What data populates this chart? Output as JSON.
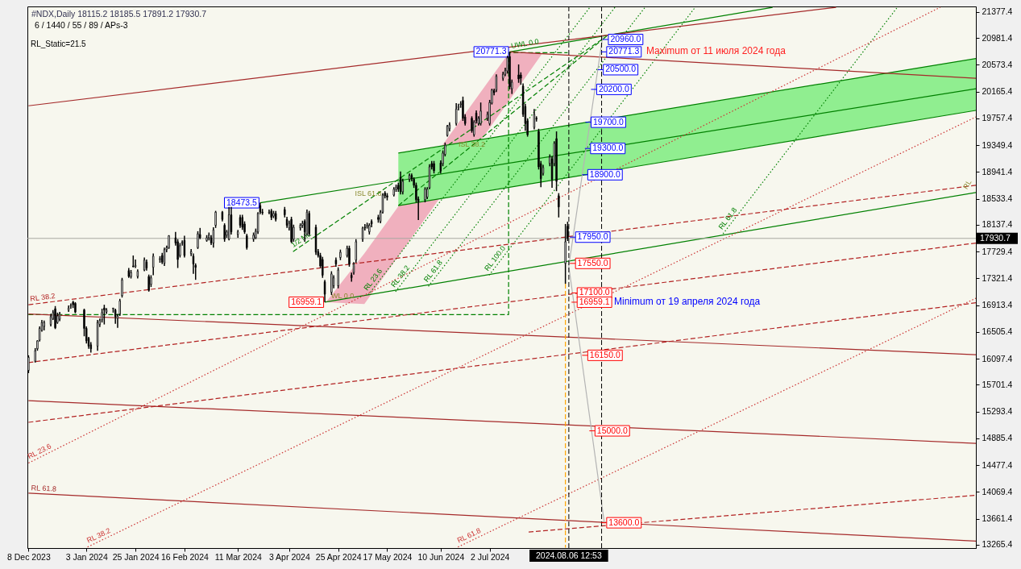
{
  "chart_data": {
    "type": "candlestick",
    "title": "#NDX,Daily  18115.2 18185.5 17891.2 17930.7",
    "subtitle": "6 / 1440 / 55 / 89 / APs-3",
    "xlim": [
      "2023-12-07T12:00",
      "2025-02-05T06:00"
    ],
    "ylim": [
      13215,
      21463
    ],
    "xticks": [
      {
        "value": "2023-12-08",
        "label": "8 Dec 2023"
      },
      {
        "value": "2024-01-03",
        "label": "3 Jan 2024"
      },
      {
        "value": "2024-01-25",
        "label": "25 Jan 2024"
      },
      {
        "value": "2024-02-16",
        "label": "16 Feb 2024"
      },
      {
        "value": "2024-03-11",
        "label": "11 Mar 2024"
      },
      {
        "value": "2024-04-03",
        "label": "3 Apr 2024"
      },
      {
        "value": "2024-04-25",
        "label": "25 Apr 2024"
      },
      {
        "value": "2024-05-17",
        "label": "17 May 2024"
      },
      {
        "value": "2024-06-10",
        "label": "10 Jun 2024"
      },
      {
        "value": "2024-07-02",
        "label": "2 Jul 2024"
      }
    ],
    "yticks": [
      21377.4,
      20981.4,
      20573.4,
      20165.4,
      19757.4,
      19349.4,
      18941.4,
      18533.4,
      18137.4,
      17729.4,
      17321.4,
      16913.4,
      16505.4,
      16097.4,
      15701.4,
      15293.4,
      14885.4,
      14477.4,
      14069.4,
      13661.4,
      13265.4
    ],
    "grid": false,
    "x": [
      "2023-12-08",
      "2023-12-11",
      "2023-12-12",
      "2023-12-13",
      "2023-12-14",
      "2023-12-15",
      "2023-12-18",
      "2023-12-19",
      "2023-12-20",
      "2023-12-21",
      "2023-12-22",
      "2023-12-26",
      "2023-12-27",
      "2023-12-28",
      "2023-12-29",
      "2024-01-02",
      "2024-01-03",
      "2024-01-04",
      "2024-01-05",
      "2024-01-08",
      "2024-01-09",
      "2024-01-10",
      "2024-01-11",
      "2024-01-12",
      "2024-01-15",
      "2024-01-16",
      "2024-01-17",
      "2024-01-18",
      "2024-01-19",
      "2024-01-22",
      "2024-01-23",
      "2024-01-24",
      "2024-01-25",
      "2024-01-26",
      "2024-01-29",
      "2024-01-30",
      "2024-01-31",
      "2024-02-01",
      "2024-02-02",
      "2024-02-05",
      "2024-02-06",
      "2024-02-07",
      "2024-02-08",
      "2024-02-09",
      "2024-02-12",
      "2024-02-13",
      "2024-02-14",
      "2024-02-15",
      "2024-02-16",
      "2024-02-19",
      "2024-02-20",
      "2024-02-21",
      "2024-02-22",
      "2024-02-23",
      "2024-02-26",
      "2024-02-27",
      "2024-02-28",
      "2024-02-29",
      "2024-03-01",
      "2024-03-04",
      "2024-03-05",
      "2024-03-06",
      "2024-03-07",
      "2024-03-08",
      "2024-03-11",
      "2024-03-12",
      "2024-03-13",
      "2024-03-14",
      "2024-03-15",
      "2024-03-18",
      "2024-03-19",
      "2024-03-20",
      "2024-03-21",
      "2024-03-22",
      "2024-03-25",
      "2024-03-26",
      "2024-03-27",
      "2024-03-28",
      "2024-04-01",
      "2024-04-02",
      "2024-04-03",
      "2024-04-04",
      "2024-04-05",
      "2024-04-08",
      "2024-04-09",
      "2024-04-10",
      "2024-04-11",
      "2024-04-12",
      "2024-04-15",
      "2024-04-16",
      "2024-04-17",
      "2024-04-18",
      "2024-04-19",
      "2024-04-22",
      "2024-04-23",
      "2024-04-24",
      "2024-04-25",
      "2024-04-26",
      "2024-04-29",
      "2024-04-30",
      "2024-05-01",
      "2024-05-02",
      "2024-05-03",
      "2024-05-06",
      "2024-05-07",
      "2024-05-08",
      "2024-05-09",
      "2024-05-10",
      "2024-05-13",
      "2024-05-14",
      "2024-05-15",
      "2024-05-16",
      "2024-05-17",
      "2024-05-20",
      "2024-05-21",
      "2024-05-22",
      "2024-05-23",
      "2024-05-24",
      "2024-05-27",
      "2024-05-28",
      "2024-05-29",
      "2024-05-30",
      "2024-05-31",
      "2024-06-03",
      "2024-06-04",
      "2024-06-05",
      "2024-06-06",
      "2024-06-07",
      "2024-06-10",
      "2024-06-11",
      "2024-06-12",
      "2024-06-13",
      "2024-06-14",
      "2024-06-17",
      "2024-06-18",
      "2024-06-19",
      "2024-06-20",
      "2024-06-21",
      "2024-06-24",
      "2024-06-25",
      "2024-06-26",
      "2024-06-27",
      "2024-06-28",
      "2024-07-01",
      "2024-07-02",
      "2024-07-03",
      "2024-07-04",
      "2024-07-05",
      "2024-07-08",
      "2024-07-09",
      "2024-07-10",
      "2024-07-11",
      "2024-07-12",
      "2024-07-15",
      "2024-07-16",
      "2024-07-17",
      "2024-07-18",
      "2024-07-19",
      "2024-07-22",
      "2024-07-23",
      "2024-07-24",
      "2024-07-25",
      "2024-07-26",
      "2024-07-29",
      "2024-07-30",
      "2024-07-31",
      "2024-08-01",
      "2024-08-02",
      "2024-08-05",
      "2024-08-06"
    ],
    "ohlc": [
      [
        15920,
        16150,
        15880,
        16120
      ],
      [
        16060,
        16260,
        16040,
        16220
      ],
      [
        16250,
        16380,
        16220,
        16370
      ],
      [
        16380,
        16590,
        16360,
        16560
      ],
      [
        16530,
        16690,
        16510,
        16650
      ],
      [
        16590,
        16680,
        16530,
        16650
      ],
      [
        16620,
        16780,
        16590,
        16740
      ],
      [
        16710,
        16840,
        16690,
        16800
      ],
      [
        16860,
        16900,
        16550,
        16570
      ],
      [
        16650,
        16800,
        16630,
        16750
      ],
      [
        16700,
        16810,
        16670,
        16780
      ],
      [
        16840,
        16910,
        16810,
        16870
      ],
      [
        16900,
        16940,
        16860,
        16910
      ],
      [
        16960,
        16980,
        16870,
        16920
      ],
      [
        16940,
        16960,
        16790,
        16810
      ],
      [
        16840,
        16860,
        16440,
        16560
      ],
      [
        16560,
        16590,
        16330,
        16370
      ],
      [
        16410,
        16430,
        16250,
        16290
      ],
      [
        16310,
        16350,
        16190,
        16250
      ],
      [
        16290,
        16690,
        16220,
        16650
      ],
      [
        16620,
        16710,
        16580,
        16680
      ],
      [
        16690,
        16860,
        16650,
        16800
      ],
      [
        16870,
        16920,
        16620,
        16840
      ],
      [
        16810,
        16870,
        16780,
        16840
      ],
      [
        16860,
        16870,
        16800,
        16870
      ],
      [
        16840,
        16860,
        16630,
        16740
      ],
      [
        16710,
        16780,
        16570,
        16750
      ],
      [
        16780,
        17010,
        16750,
        16980
      ],
      [
        17060,
        17330,
        17030,
        17300
      ],
      [
        17440,
        17480,
        17330,
        17350
      ],
      [
        17350,
        17450,
        17320,
        17410
      ],
      [
        17510,
        17670,
        17490,
        17500
      ],
      [
        17500,
        17610,
        17480,
        17520
      ],
      [
        17350,
        17460,
        17320,
        17430
      ],
      [
        17450,
        17640,
        17430,
        17600
      ],
      [
        17570,
        17610,
        17440,
        17480
      ],
      [
        17350,
        17380,
        17120,
        17140
      ],
      [
        17230,
        17370,
        17190,
        17330
      ],
      [
        17490,
        17700,
        17370,
        17660
      ],
      [
        17610,
        17660,
        17560,
        17620
      ],
      [
        17670,
        17710,
        17540,
        17570
      ],
      [
        17550,
        17790,
        17510,
        17760
      ],
      [
        17760,
        17820,
        17720,
        17790
      ],
      [
        17790,
        17980,
        17770,
        17970
      ],
      [
        17940,
        18030,
        17820,
        17860
      ],
      [
        17880,
        17920,
        17480,
        17610
      ],
      [
        17670,
        17860,
        17640,
        17820
      ],
      [
        17860,
        17900,
        17820,
        17870
      ],
      [
        17900,
        17970,
        17640,
        17670
      ],
      [
        17700,
        17770,
        17660,
        17730
      ],
      [
        17660,
        17700,
        17390,
        17540
      ],
      [
        17520,
        17550,
        17300,
        17490
      ],
      [
        17790,
        18040,
        17770,
        18000
      ],
      [
        17990,
        18090,
        17920,
        17940
      ],
      [
        17900,
        17980,
        17880,
        17940
      ],
      [
        17940,
        18020,
        17900,
        17980
      ],
      [
        17940,
        17980,
        17830,
        17860
      ],
      [
        17860,
        18100,
        17790,
        18060
      ],
      [
        18130,
        18350,
        18090,
        18330
      ],
      [
        18330,
        18350,
        18190,
        18220
      ],
      [
        18130,
        18160,
        17880,
        17920
      ],
      [
        17980,
        18060,
        17940,
        18030
      ],
      [
        17920,
        18410,
        17900,
        18290
      ],
      [
        18290,
        18410,
        17990,
        18030
      ],
      [
        17990,
        18060,
        17940,
        18030
      ],
      [
        18250,
        18290,
        18090,
        18130
      ],
      [
        18250,
        18290,
        18060,
        18100
      ],
      [
        18150,
        18190,
        18000,
        18030
      ],
      [
        17970,
        18000,
        17760,
        17790
      ],
      [
        17920,
        18020,
        17880,
        17980
      ],
      [
        17940,
        18080,
        17920,
        18040
      ],
      [
        18030,
        18330,
        18000,
        18310
      ],
      [
        18430,
        18473.5,
        18300,
        18330
      ],
      [
        18330,
        18380,
        18290,
        18320
      ],
      [
        18320,
        18370,
        18300,
        18330
      ],
      [
        18350,
        18380,
        18210,
        18250
      ],
      [
        18270,
        18350,
        18240,
        18310
      ],
      [
        18310,
        18350,
        18190,
        18220
      ],
      [
        18370,
        18410,
        18250,
        18290
      ],
      [
        18220,
        18260,
        18090,
        18130
      ],
      [
        18090,
        18200,
        18050,
        18160
      ],
      [
        18220,
        18260,
        17860,
        17880
      ],
      [
        17920,
        18140,
        17880,
        18100
      ],
      [
        18090,
        18160,
        18050,
        18130
      ],
      [
        18130,
        18200,
        18090,
        18160
      ],
      [
        18190,
        18220,
        17880,
        18030
      ],
      [
        18000,
        18370,
        17970,
        18330
      ],
      [
        18310,
        18350,
        17970,
        18000
      ],
      [
        18100,
        18140,
        17680,
        17720
      ],
      [
        17730,
        17770,
        17640,
        17670
      ],
      [
        17670,
        17710,
        17480,
        17510
      ],
      [
        17610,
        17650,
        17330,
        17370
      ],
      [
        17270,
        17300,
        16959.1,
        17080
      ],
      [
        17110,
        17430,
        17070,
        17390
      ],
      [
        17210,
        17370,
        17170,
        17330
      ],
      [
        17600,
        17640,
        17500,
        17540
      ],
      [
        17210,
        17490,
        17170,
        17450
      ],
      [
        17640,
        17760,
        17600,
        17720
      ],
      [
        17670,
        17820,
        17640,
        17780
      ],
      [
        17780,
        17820,
        17500,
        17540
      ],
      [
        17370,
        17410,
        17270,
        17330
      ],
      [
        17410,
        17570,
        17380,
        17540
      ],
      [
        17600,
        17920,
        17560,
        17880
      ],
      [
        17920,
        18110,
        17880,
        18090
      ],
      [
        18100,
        18150,
        18050,
        18090
      ],
      [
        18110,
        18170,
        18080,
        18130
      ],
      [
        18030,
        18160,
        17990,
        18130
      ],
      [
        18190,
        18220,
        18100,
        18150
      ],
      [
        18250,
        18290,
        18170,
        18220
      ],
      [
        18190,
        18360,
        18160,
        18330
      ],
      [
        18330,
        18620,
        18310,
        18590
      ],
      [
        18620,
        18650,
        18540,
        18580
      ],
      [
        18580,
        18620,
        18510,
        18560
      ],
      [
        18590,
        18710,
        18570,
        18680
      ],
      [
        18680,
        18750,
        18640,
        18710
      ],
      [
        18740,
        18780,
        18640,
        18680
      ],
      [
        18860,
        18950,
        18600,
        18640
      ],
      [
        18640,
        18840,
        18600,
        18800
      ],
      [
        18830,
        18920,
        18790,
        18890
      ],
      [
        18890,
        18920,
        18800,
        18840
      ],
      [
        18830,
        18860,
        18700,
        18740
      ],
      [
        18740,
        18780,
        18480,
        18520
      ],
      [
        18530,
        18570,
        18210,
        18490
      ],
      [
        18520,
        18710,
        18480,
        18680
      ],
      [
        18560,
        18710,
        18530,
        18680
      ],
      [
        18700,
        19060,
        18680,
        19020
      ],
      [
        19070,
        19110,
        18980,
        19020
      ],
      [
        19070,
        19110,
        18920,
        18960
      ],
      [
        19080,
        19120,
        18920,
        18960
      ],
      [
        19070,
        19270,
        19030,
        19230
      ],
      [
        19210,
        19390,
        19180,
        19350
      ],
      [
        19500,
        19660,
        19480,
        19640
      ],
      [
        19600,
        19700,
        19560,
        19660
      ],
      [
        19680,
        19990,
        19650,
        19900
      ],
      [
        19920,
        19980,
        19880,
        19940
      ],
      [
        19970,
        20020,
        19920,
        19980
      ],
      [
        20030,
        20090,
        19720,
        19760
      ],
      [
        19780,
        19820,
        19650,
        19680
      ],
      [
        19760,
        19790,
        19540,
        19570
      ],
      [
        19510,
        19730,
        19480,
        19700
      ],
      [
        19840,
        19880,
        19680,
        19720
      ],
      [
        19680,
        19790,
        19650,
        19760
      ],
      [
        19680,
        20000,
        19650,
        19870
      ],
      [
        19760,
        19860,
        19720,
        19820
      ],
      [
        19680,
        20040,
        19650,
        20000
      ],
      [
        19990,
        20210,
        19970,
        20190
      ],
      [
        20180,
        20210,
        20110,
        20150
      ],
      [
        20190,
        20430,
        20160,
        20400
      ],
      [
        20370,
        20470,
        20330,
        20430
      ],
      [
        20430,
        20530,
        20400,
        20490
      ],
      [
        20480,
        20710,
        20440,
        20680
      ],
      [
        20700,
        20771.3,
        20200,
        20240
      ],
      [
        20210,
        20350,
        20130,
        20310
      ],
      [
        20420,
        20580,
        20300,
        20360
      ],
      [
        20420,
        20460,
        20270,
        20370
      ],
      [
        20250,
        20290,
        19780,
        19820
      ],
      [
        19940,
        19980,
        19570,
        19680
      ],
      [
        19720,
        19760,
        19480,
        19510
      ],
      [
        19620,
        19900,
        19590,
        19820
      ],
      [
        19760,
        19790,
        19710,
        19750
      ],
      [
        19560,
        19600,
        18980,
        19020
      ],
      [
        19070,
        19110,
        18710,
        18840
      ],
      [
        18920,
        19050,
        18890,
        19010
      ],
      [
        19070,
        19210,
        19030,
        19170
      ],
      [
        19140,
        19180,
        18700,
        18830
      ],
      [
        19070,
        19410,
        19030,
        19380
      ],
      [
        19450,
        19560,
        18650,
        18800
      ],
      [
        18580,
        18620,
        18250,
        18410
      ],
      [
        17550,
        18150,
        17240,
        17880
      ],
      [
        18115.2,
        18185.5,
        17891.2,
        17930.7
      ]
    ],
    "series": [
      {
        "type": "area",
        "color": "#f0b0be",
        "x": [
          "2024-04-19T12:00",
          "2024-05-06T18:00",
          "2024-07-10T18:00",
          "2024-07-25T06:00"
        ],
        "values": [
          null,
          null,
          null,
          null
        ],
        "lower": [
          16960,
          16930,
          20030,
          20730
        ],
        "upper": [
          16960,
          17700,
          20760,
          20760
        ]
      },
      {
        "type": "area",
        "color": "#90ee90",
        "x": [
          "2024-05-22",
          "2025-02-05T06:00"
        ],
        "values": [
          null,
          null
        ],
        "lower": [
          18430,
          19880
        ],
        "upper": [
          19230,
          20670
        ]
      },
      {
        "type": "line",
        "color": "#008000",
        "line_style": "solid",
        "x": [
          "2024-05-22",
          "2025-02-05T06:00"
        ],
        "values": [
          19230,
          20670
        ]
      },
      {
        "type": "line",
        "color": "#008000",
        "line_style": "solid",
        "x": [
          "2024-05-22",
          "2025-02-05T06:00"
        ],
        "values": [
          18430,
          19880
        ]
      },
      {
        "type": "line",
        "color": "#008000",
        "line_style": "solid",
        "x": [
          "2024-03-21",
          "2025-02-05T06:00"
        ],
        "values": [
          18473.5,
          20210
        ]
      },
      {
        "type": "line",
        "color": "#008000",
        "line_style": "solid",
        "x": [
          "2024-04-19",
          "2025-02-05T06:00"
        ],
        "values": [
          16959.1,
          18630
        ]
      },
      {
        "type": "line",
        "name": "UWL 0.0",
        "color": "#008000",
        "line_style": "solid",
        "x": [
          "2024-07-11",
          "2024-11-06"
        ],
        "values": [
          20771.3,
          21450
        ]
      },
      {
        "type": "line",
        "color": "#008000",
        "line_style": "dashed",
        "x": [
          "2023-12-08",
          "2024-07-10T12:00",
          "2024-07-10T12:00",
          "2024-08-06"
        ],
        "values": [
          16770,
          16770,
          20760,
          20760
        ]
      },
      {
        "type": "line",
        "name": "1/2 ML",
        "color": "#008000",
        "line_style": "dashed",
        "x": [
          "2024-04-04T18:00",
          "2024-08-23T12:00"
        ],
        "values": [
          17730,
          21010
        ]
      },
      {
        "type": "line",
        "color": "#008000",
        "line_style": "dashed",
        "x": [
          "2024-05-22",
          "2024-08-23T12:00"
        ],
        "values": [
          18430,
          21010
        ]
      },
      {
        "type": "line",
        "name": "RL 23.6",
        "color": "#008000",
        "line_style": "dotted",
        "x": [
          "2024-05-08T12:00",
          "2024-08-16"
        ],
        "values": [
          17070,
          21450
        ]
      },
      {
        "type": "line",
        "name": "RL 38.2",
        "color": "#008000",
        "line_style": "dotted",
        "x": [
          "2024-05-20T18:00",
          "2024-08-27T06:00"
        ],
        "values": [
          17120,
          21450
        ]
      },
      {
        "type": "line",
        "name": "RL 61.8",
        "color": "#008000",
        "line_style": "dotted",
        "x": [
          "2024-06-04T12:00",
          "2024-09-09T18:00"
        ],
        "values": [
          17200,
          21450
        ]
      },
      {
        "type": "line",
        "name": "RL 100.0",
        "color": "#008000",
        "line_style": "dotted",
        "x": [
          "2024-07-01T18:00",
          "2024-10-02T06:00"
        ],
        "values": [
          17370,
          21450
        ]
      },
      {
        "type": "line",
        "name": "RL 61.8",
        "color": "#008000",
        "line_style": "dotted",
        "x": [
          "2024-10-14T18:00",
          "2025-01-01"
        ],
        "values": [
          18000,
          21450
        ]
      },
      {
        "type": "line",
        "color": "#a52a2a",
        "line_style": "solid",
        "x": [
          "2023-12-08",
          "2024-12-04T12:00"
        ],
        "values": [
          19950,
          21450
        ]
      },
      {
        "type": "line",
        "color": "#a52a2a",
        "line_style": "solid",
        "x": [
          "2024-07-11",
          "2025-02-05T06:00"
        ],
        "values": [
          20771.3,
          20370
        ]
      },
      {
        "type": "line",
        "color": "#a52a2a",
        "line_style": "solid",
        "x": [
          "2023-12-08",
          "2025-02-05T06:00"
        ],
        "values": [
          16780,
          16160
        ]
      },
      {
        "type": "line",
        "color": "#a52a2a",
        "line_style": "solid",
        "x": [
          "2023-12-08",
          "2025-02-05T06:00"
        ],
        "values": [
          15460,
          14810
        ]
      },
      {
        "type": "line",
        "name": "RL 61.8",
        "color": "#a52a2a",
        "line_style": "solid",
        "x": [
          "2023-12-08",
          "2025-02-05T06:00"
        ],
        "values": [
          14050,
          13320
        ]
      },
      {
        "type": "line",
        "name": "RL 38.2",
        "color": "#b22222",
        "line_style": "dashed",
        "x": [
          "2023-12-08",
          "2025-02-05T06:00"
        ],
        "values": [
          16920,
          18740
        ]
      },
      {
        "type": "line",
        "color": "#b22222",
        "line_style": "dashed",
        "x": [
          "2023-12-08",
          "2025-02-05T06:00"
        ],
        "values": [
          16040,
          17860
        ]
      },
      {
        "type": "line",
        "color": "#b22222",
        "line_style": "dashed",
        "x": [
          "2023-12-08",
          "2025-02-05T06:00"
        ],
        "values": [
          15130,
          16950
        ]
      },
      {
        "type": "line",
        "color": "#b22222",
        "line_style": "dashed",
        "x": [
          "2024-07-19T12:00",
          "2025-02-05T06:00"
        ],
        "values": [
          13460,
          14020
        ]
      },
      {
        "type": "line",
        "name": "RL 23.6",
        "color": "#cc3333",
        "line_style": "dotted",
        "x": [
          "2023-12-08",
          "2025-01-20T06:00"
        ],
        "values": [
          14510,
          21450
        ]
      },
      {
        "type": "line",
        "name": "RL 38.2",
        "color": "#cc3333",
        "line_style": "dotted",
        "x": [
          "2024-01-03T12:00",
          "2025-02-05T06:00"
        ],
        "values": [
          13230,
          19780
        ]
      },
      {
        "type": "line",
        "name": "RL 61.8",
        "color": "#cc3333",
        "line_style": "dotted",
        "x": [
          "2024-06-17T18:00",
          "2025-02-05T06:00"
        ],
        "values": [
          13230,
          17020
        ]
      },
      {
        "type": "line",
        "color": "#b4b4b4",
        "line_style": "solid",
        "x": [
          "2024-08-21T18:00",
          "2024-08-06T12:00",
          "2024-08-22T12:00"
        ],
        "values": [
          21010,
          17510,
          13590
        ]
      },
      {
        "type": "line",
        "color": "#ffa500",
        "line_style": "dashed",
        "x": [
          "2024-08-05",
          "2024-08-05"
        ],
        "values": [
          17240,
          13220
        ]
      }
    ],
    "ref_lines": [
      {
        "axis": "y",
        "value": 17930.7,
        "label": "17930.7",
        "color": "#a8a8a0"
      },
      {
        "axis": "x",
        "value": "2024-08-06T12:53",
        "label": "2024.08.06 12:53",
        "color": "#000000",
        "line_style": "dashed"
      },
      {
        "axis": "x",
        "value": "2024-08-21T06:00",
        "color": "#000000",
        "line_style": "dashed"
      }
    ],
    "annotations": [
      "RL_Static=21.5",
      "Maximum от 11 июля 2024 года",
      "Minimum от 19 апреля 2024 года",
      "RL",
      {
        "text": "18473.5",
        "x": "2024-03-21",
        "y": 18473.5
      },
      {
        "text": "16959.1",
        "x": "2024-04-19",
        "y": 16959.1
      },
      {
        "text": "20771.3",
        "x": "2024-07-11",
        "y": 20771.3
      },
      {
        "text": "20960.0",
        "x": "2024-08-21T18:00",
        "y": 20960.0
      },
      {
        "text": "20771.3",
        "x": "2024-08-21",
        "y": 20771.3
      },
      {
        "text": "20500.0",
        "x": "2024-08-19T12:00",
        "y": 20500.0
      },
      {
        "text": "20200.0",
        "x": "2024-08-16T12:00",
        "y": 20200.0
      },
      {
        "text": "19700.0",
        "x": "2024-08-14",
        "y": 19700.0
      },
      {
        "text": "19300.0",
        "x": "2024-08-13T18:00",
        "y": 19300.0
      },
      {
        "text": "18900.0",
        "x": "2024-08-12T12:00",
        "y": 18900.0
      },
      {
        "text": "17950.0",
        "x": "2024-08-07",
        "y": 17950.0
      },
      {
        "text": "17550.0",
        "x": "2024-08-07",
        "y": 17550.0
      },
      {
        "text": "17100.0",
        "x": "2024-08-07T18:00",
        "y": 17100.0
      },
      {
        "text": "16959.1",
        "x": "2024-08-07T18:00",
        "y": 16959.1
      },
      {
        "text": "16150.0",
        "x": "2024-08-12T12:00",
        "y": 16150.0
      },
      {
        "text": "15000.0",
        "x": "2024-08-15T18:00",
        "y": 15000.0
      },
      {
        "text": "13600.0",
        "x": "2024-08-21",
        "y": 13600.0
      },
      {
        "text": "WL 0.0",
        "x": "2024-04-27",
        "y": 16990
      },
      {
        "text": "ISL 61.8",
        "x": "2024-05-08T12:00",
        "y": 18560
      },
      {
        "text": "ISL 38.2",
        "x": "2024-06-24",
        "y": 19300
      }
    ]
  }
}
